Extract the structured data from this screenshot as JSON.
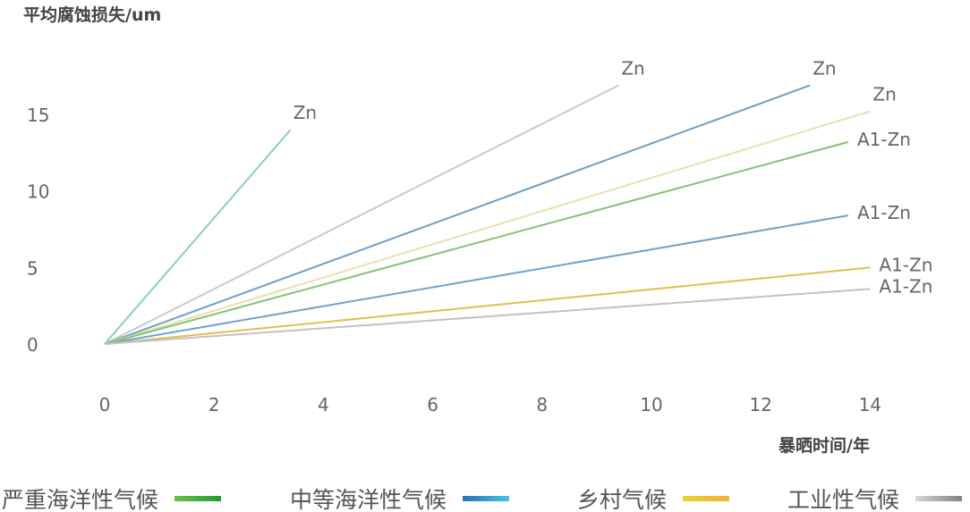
{
  "chart_data": {
    "type": "line",
    "ylabel": "平均腐蚀损失/um",
    "xlabel": "暴晒时间/年",
    "xlim": [
      0,
      14
    ],
    "ylim": [
      0,
      15
    ],
    "xticks": [
      "0",
      "2",
      "4",
      "6",
      "8",
      "10",
      "12",
      "14"
    ],
    "yticks": [
      "0",
      "5",
      "10",
      "15"
    ],
    "grid": false,
    "series": [
      {
        "name": "Zn",
        "x": [
          0,
          3.4
        ],
        "y": [
          0,
          14.0
        ],
        "color": "#8ecfb5"
      },
      {
        "name": "Zn",
        "x": [
          0,
          9.4
        ],
        "y": [
          0,
          16.9
        ],
        "color": "#cacaca"
      },
      {
        "name": "Zn",
        "x": [
          0,
          12.9
        ],
        "y": [
          0,
          16.9
        ],
        "color": "#6e9fc6"
      },
      {
        "name": "Zn",
        "x": [
          0,
          14.0
        ],
        "y": [
          0,
          15.2
        ],
        "color": "#e8e0aa"
      },
      {
        "name": "A1-Zn",
        "x": [
          0,
          13.6
        ],
        "y": [
          0,
          13.2
        ],
        "color": "#86c274"
      },
      {
        "name": "A1-Zn",
        "x": [
          0,
          13.6
        ],
        "y": [
          0,
          8.4
        ],
        "color": "#6aa3d0"
      },
      {
        "name": "A1-Zn",
        "x": [
          0,
          14.0
        ],
        "y": [
          0,
          5.0
        ],
        "color": "#e0c050"
      },
      {
        "name": "A1-Zn",
        "x": [
          0,
          14.0
        ],
        "y": [
          0,
          3.6
        ],
        "color": "#c2c2c2"
      }
    ]
  },
  "legend": [
    {
      "label": "严重海洋性气候",
      "gradient": [
        "#6cc04a",
        "#1e9a34"
      ]
    },
    {
      "label": "中等海洋性气候",
      "gradient": [
        "#2f6fb5",
        "#3ec8e4"
      ]
    },
    {
      "label": "乡村气候",
      "gradient": [
        "#e8d42a",
        "#f2ae3e"
      ]
    },
    {
      "label": "工业性气候",
      "gradient": [
        "#d8d8d8",
        "#808088"
      ]
    }
  ]
}
